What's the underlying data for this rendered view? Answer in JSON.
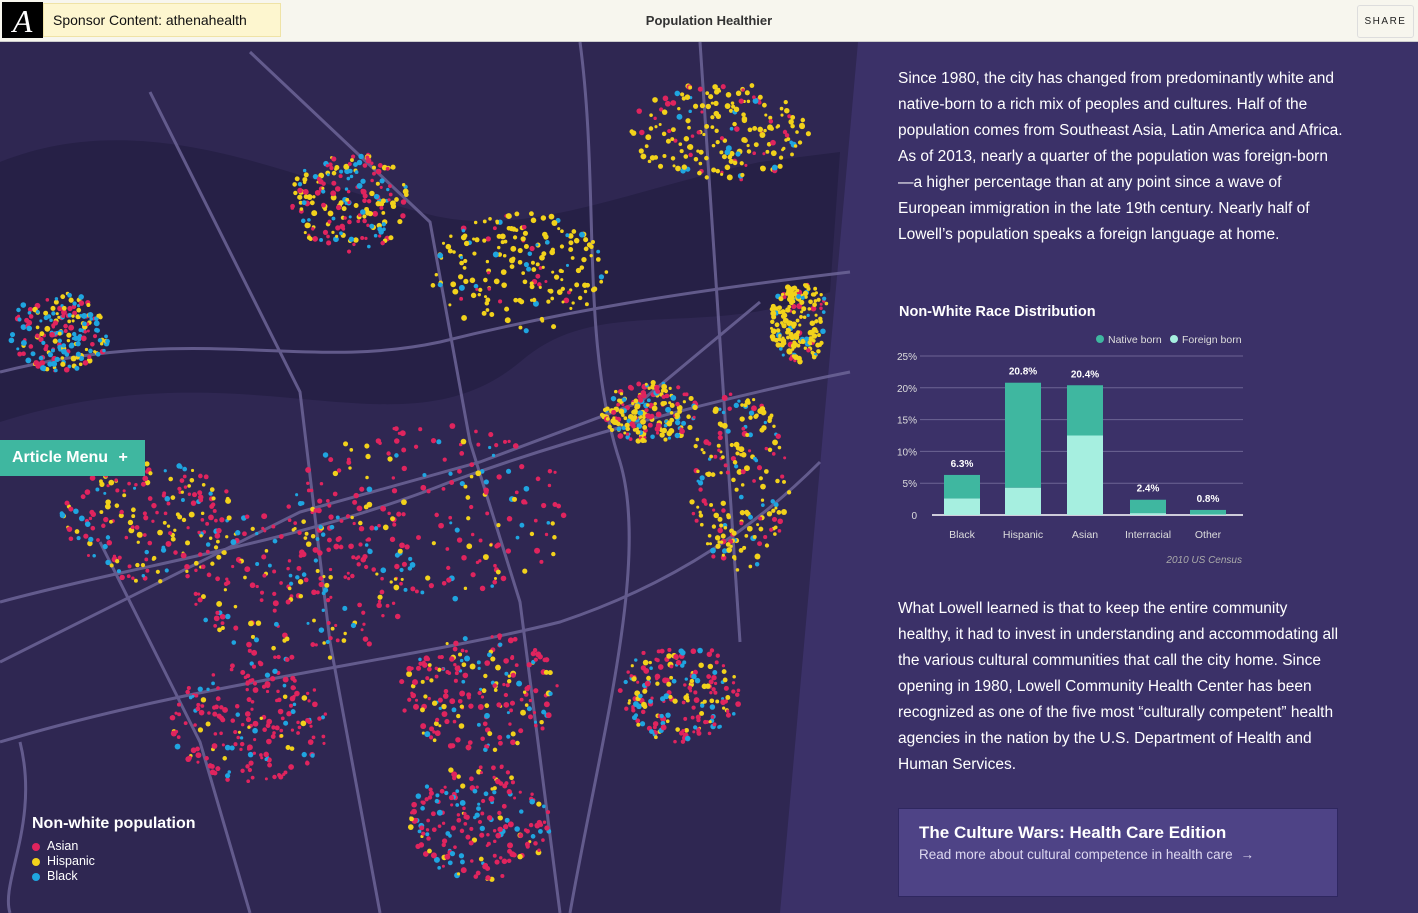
{
  "header": {
    "logo": "A",
    "sponsor": "Sponsor Content: athenahealth",
    "title": "Population Healthier",
    "share": "SHARE"
  },
  "article_menu": {
    "label": "Article Menu",
    "icon": "+"
  },
  "map_legend": {
    "title": "Non-white population",
    "items": [
      {
        "label": "Asian",
        "color": "#e0245e"
      },
      {
        "label": "Hispanic",
        "color": "#f2d21b"
      },
      {
        "label": "Black",
        "color": "#1fa5e0"
      }
    ]
  },
  "text": {
    "p1": "Since 1980, the city has changed from predominantly white and native-born to a rich mix of peoples and cultures. Half of the population comes from Southeast Asia, Latin America and Africa. As of 2013, nearly a quarter of the population was foreign-born—a higher percentage than at any point since a wave of European immigration in the late 19th century. Nearly half of Lowell’s population speaks a foreign language at home.",
    "p2": "What Lowell learned is that to keep the entire community healthy, it had to invest in understanding and accommodating all the various cultural communities that call the city home. Since opening in 1980, Lowell Community Health Center has been recognized as one of the five most “culturally competent” health agencies in the nation by the U.S. Department of Health and Human Services."
  },
  "chart_data": {
    "type": "bar",
    "stacked": true,
    "title": "Non-White Race Distribution",
    "categories": [
      "Black",
      "Hispanic",
      "Asian",
      "Interracial",
      "Other"
    ],
    "totals": [
      6.3,
      20.8,
      20.4,
      2.4,
      0.8
    ],
    "total_labels": [
      "6.3%",
      "20.8%",
      "20.4%",
      "2.4%",
      "0.8%"
    ],
    "series": [
      {
        "name": "Foreign born",
        "color": "#a6efe0",
        "values": [
          2.6,
          4.3,
          12.5,
          0.3,
          0.1
        ]
      },
      {
        "name": "Native born",
        "color": "#3fb7a0",
        "values": [
          3.7,
          16.5,
          7.9,
          2.1,
          0.7
        ]
      }
    ],
    "legend": [
      "Native born",
      "Foreign born"
    ],
    "yticks": [
      "0",
      "5%",
      "10%",
      "15%",
      "20%",
      "25%"
    ],
    "ylim": [
      0,
      25
    ],
    "source": "2010 US Census"
  },
  "cta": {
    "title": "The Culture Wars: Health Care Edition",
    "link": "Read more about cultural competence in health care",
    "arrow": "→"
  }
}
